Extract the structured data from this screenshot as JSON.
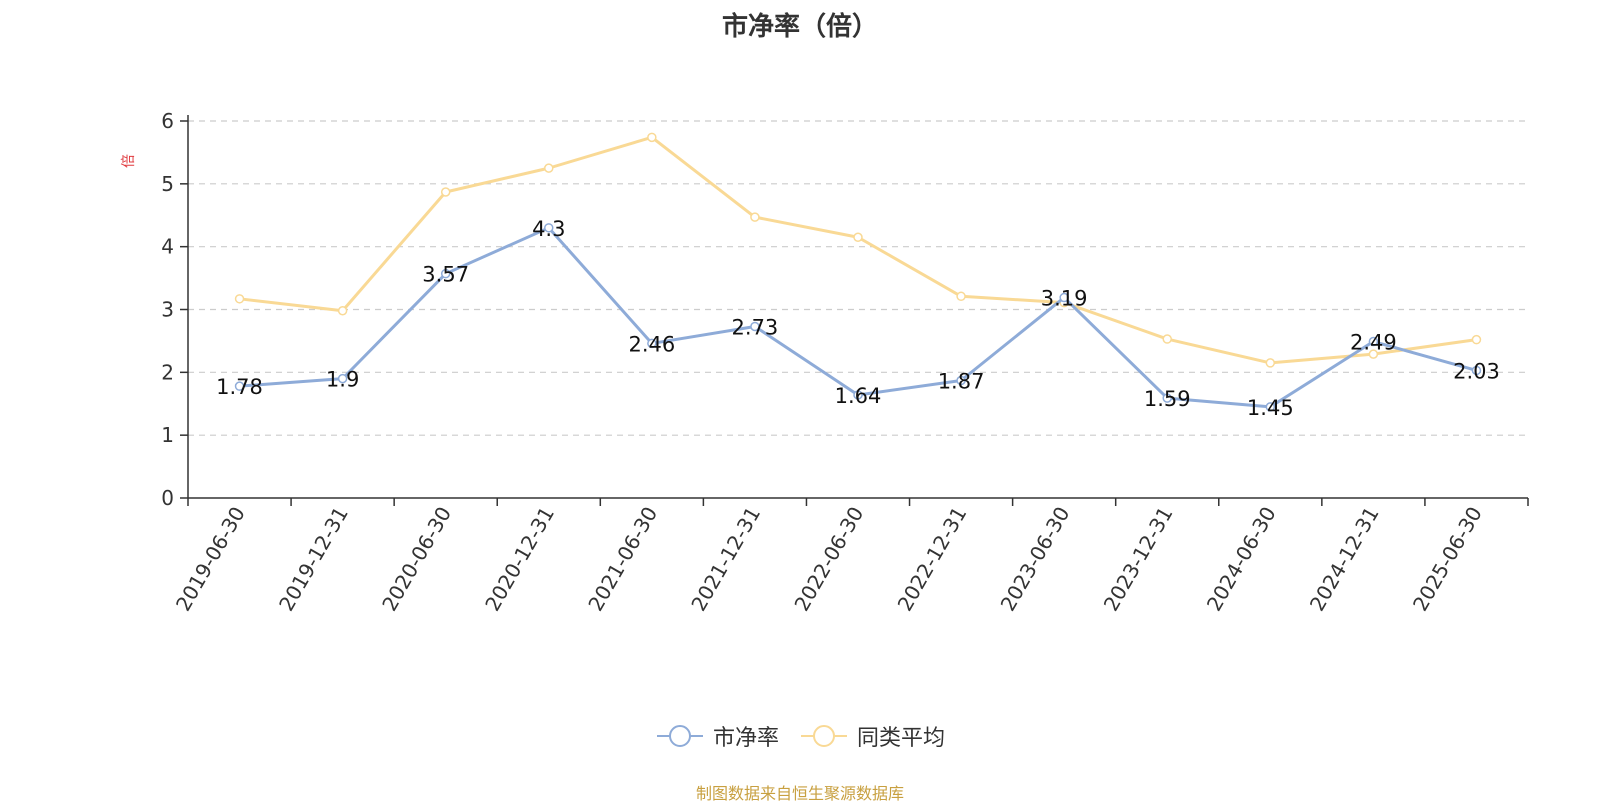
{
  "chart_data": {
    "type": "line",
    "title": "市净率（倍）",
    "ylabel": "倍",
    "ylim": [
      0,
      6
    ],
    "yticks": [
      "0",
      "1",
      "2",
      "3",
      "4",
      "5",
      "6"
    ],
    "categories": [
      "2019-06-30",
      "2019-12-31",
      "2020-06-30",
      "2020-12-31",
      "2021-06-30",
      "2021-12-31",
      "2022-06-30",
      "2022-12-31",
      "2023-06-30",
      "2023-12-31",
      "2024-06-30",
      "2024-12-31",
      "2025-06-30"
    ],
    "series": [
      {
        "name": "市净率",
        "color": "#8eabd8",
        "values": [
          1.78,
          1.9,
          3.57,
          4.3,
          2.46,
          2.73,
          1.64,
          1.87,
          3.19,
          1.59,
          1.45,
          2.49,
          2.03
        ],
        "labels": [
          "1.78",
          "1.9",
          "3.57",
          "4.3",
          "2.46",
          "2.73",
          "1.64",
          "1.87",
          "3.19",
          "1.59",
          "1.45",
          "2.49",
          "2.03"
        ]
      },
      {
        "name": "同类平均",
        "color": "#f9d995",
        "values": [
          3.17,
          2.98,
          4.87,
          5.25,
          5.74,
          4.47,
          4.15,
          3.21,
          3.11,
          2.53,
          2.15,
          2.29,
          2.52
        ]
      }
    ],
    "grid": true,
    "legend_position": "bottom-center"
  },
  "footer": {
    "source": "制图数据来自恒生聚源数据库",
    "source_color": "#c8a040"
  },
  "colors": {
    "ylabel": "#e0393e",
    "axis": "#333333",
    "gridline": "#cccccc"
  }
}
